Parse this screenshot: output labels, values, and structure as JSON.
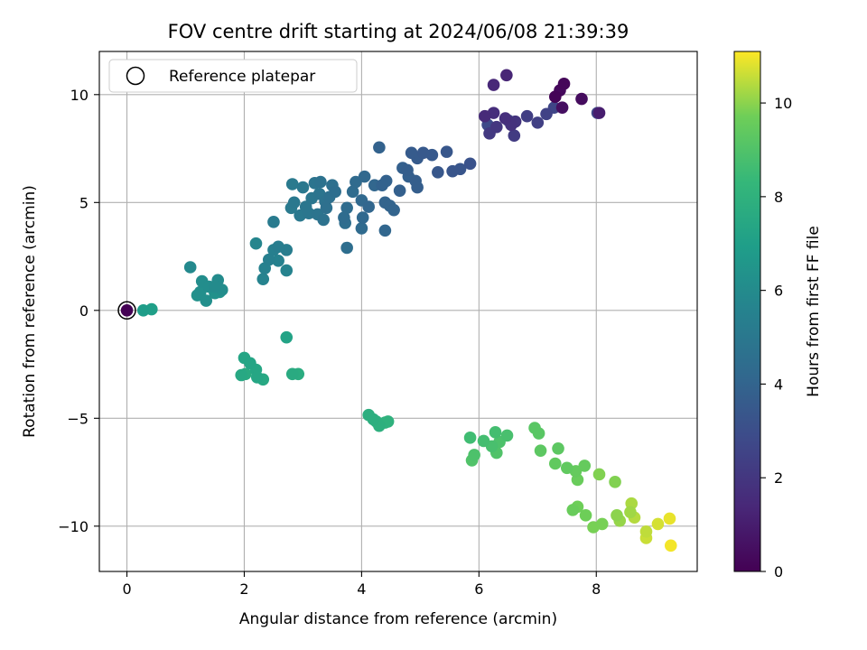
{
  "chart_data": {
    "type": "scatter",
    "title": "FOV centre drift starting at 2024/06/08 21:39:39",
    "xlabel": "Angular distance from reference (arcmin)",
    "ylabel": "Rotation from reference (arcmin)",
    "xlim": [
      -0.47,
      9.72
    ],
    "ylim": [
      -12.1,
      12.0
    ],
    "xticks": [
      0,
      2,
      4,
      6,
      8
    ],
    "xtick_labels": [
      "0",
      "2",
      "4",
      "6",
      "8"
    ],
    "yticks": [
      -10,
      -5,
      0,
      5,
      10
    ],
    "ytick_labels": [
      "−10",
      "−5",
      "0",
      "5",
      "10"
    ],
    "grid": true,
    "legend": {
      "placement": "upper-left",
      "entries": [
        "Reference platepar"
      ]
    },
    "colorbar": {
      "label": "Hours from first FF file",
      "colormap": "viridis",
      "range": [
        0,
        11.1
      ],
      "ticks": [
        0,
        2,
        4,
        6,
        8,
        10
      ],
      "tick_labels": [
        "0",
        "2",
        "4",
        "6",
        "8",
        "10"
      ]
    },
    "reference_point": {
      "x": 0,
      "y": 0
    },
    "columns": [
      "x",
      "y",
      "hours"
    ],
    "points": [
      [
        0,
        0,
        0
      ],
      [
        7.3,
        9.9,
        0.1
      ],
      [
        7.45,
        10.5,
        0.2
      ],
      [
        7.38,
        10.2,
        0.3
      ],
      [
        7.75,
        9.8,
        0.4
      ],
      [
        7.42,
        9.4,
        0.5
      ],
      [
        8.05,
        9.15,
        1.0
      ],
      [
        6.47,
        10.9,
        1.3
      ],
      [
        6.25,
        10.45,
        1.4
      ],
      [
        6.1,
        9.0,
        1.5
      ],
      [
        6.25,
        9.15,
        1.6
      ],
      [
        6.45,
        8.9,
        1.7
      ],
      [
        6.55,
        8.6,
        1.8
      ],
      [
        6.62,
        8.75,
        1.9
      ],
      [
        6.3,
        8.5,
        2.0
      ],
      [
        6.18,
        8.2,
        2.1
      ],
      [
        6.6,
        8.1,
        2.2
      ],
      [
        6.82,
        9.0,
        2.3
      ],
      [
        7.0,
        8.7,
        2.4
      ],
      [
        7.15,
        9.1,
        2.5
      ],
      [
        7.28,
        9.4,
        2.6
      ],
      [
        8.02,
        9.15,
        2.7
      ],
      [
        6.15,
        8.6,
        2.8
      ],
      [
        6.5,
        8.8,
        2.9
      ],
      [
        5.85,
        6.8,
        3.2
      ],
      [
        5.68,
        6.55,
        3.3
      ],
      [
        5.55,
        6.45,
        3.3
      ],
      [
        5.45,
        7.35,
        3.4
      ],
      [
        5.3,
        6.4,
        3.4
      ],
      [
        5.2,
        7.2,
        3.5
      ],
      [
        5.05,
        7.3,
        3.5
      ],
      [
        4.95,
        7.05,
        3.6
      ],
      [
        4.85,
        7.3,
        3.6
      ],
      [
        4.92,
        6.0,
        3.7
      ],
      [
        4.95,
        5.7,
        3.7
      ],
      [
        4.78,
        6.5,
        3.7
      ],
      [
        4.7,
        6.6,
        3.8
      ],
      [
        4.8,
        6.2,
        3.8
      ],
      [
        4.65,
        5.55,
        3.8
      ],
      [
        4.3,
        7.55,
        3.9
      ],
      [
        4.42,
        6.0,
        3.9
      ],
      [
        4.35,
        5.8,
        3.9
      ],
      [
        4.4,
        5.0,
        4.0
      ],
      [
        4.48,
        4.85,
        4.0
      ],
      [
        4.55,
        4.65,
        4.0
      ],
      [
        4.4,
        3.7,
        4.1
      ],
      [
        4.22,
        5.8,
        4.1
      ],
      [
        4.12,
        4.8,
        4.1
      ],
      [
        4.05,
        6.2,
        4.2
      ],
      [
        4.0,
        5.1,
        4.2
      ],
      [
        4.02,
        4.3,
        4.2
      ],
      [
        4.0,
        3.8,
        4.3
      ],
      [
        3.9,
        5.95,
        4.3
      ],
      [
        3.85,
        5.5,
        4.4
      ],
      [
        3.75,
        4.75,
        4.4
      ],
      [
        3.7,
        4.3,
        4.4
      ],
      [
        3.72,
        4.05,
        4.5
      ],
      [
        3.75,
        2.9,
        4.5
      ],
      [
        3.55,
        5.5,
        4.5
      ],
      [
        3.5,
        5.8,
        4.6
      ],
      [
        3.45,
        5.25,
        4.6
      ],
      [
        3.4,
        4.75,
        4.6
      ],
      [
        3.38,
        5.05,
        4.7
      ],
      [
        3.35,
        4.2,
        4.7
      ],
      [
        3.3,
        5.95,
        4.7
      ],
      [
        3.28,
        5.4,
        4.8
      ],
      [
        3.25,
        4.45,
        4.8
      ],
      [
        3.2,
        5.9,
        4.8
      ],
      [
        3.15,
        5.2,
        4.9
      ],
      [
        3.1,
        4.5,
        4.9
      ],
      [
        3.05,
        4.8,
        4.9
      ],
      [
        3.0,
        5.7,
        5.0
      ],
      [
        2.95,
        4.4,
        5.0
      ],
      [
        2.85,
        5.0,
        5.0
      ],
      [
        2.8,
        4.75,
        5.1
      ],
      [
        2.82,
        5.85,
        5.1
      ],
      [
        2.5,
        4.1,
        5.2
      ],
      [
        2.72,
        2.8,
        5.3
      ],
      [
        2.58,
        2.95,
        5.3
      ],
      [
        2.5,
        2.8,
        5.4
      ],
      [
        2.42,
        2.35,
        5.4
      ],
      [
        2.58,
        2.3,
        5.5
      ],
      [
        2.35,
        1.95,
        5.5
      ],
      [
        2.72,
        1.85,
        5.6
      ],
      [
        2.32,
        1.45,
        5.6
      ],
      [
        2.2,
        3.1,
        5.7
      ],
      [
        1.08,
        2.0,
        5.9
      ],
      [
        1.55,
        1.4,
        6.0
      ],
      [
        1.5,
        1.1,
        6.0
      ],
      [
        1.62,
        0.95,
        6.1
      ],
      [
        1.28,
        1.35,
        6.1
      ],
      [
        1.4,
        1.1,
        6.1
      ],
      [
        1.25,
        0.85,
        6.2
      ],
      [
        1.35,
        0.45,
        6.2
      ],
      [
        1.2,
        0.7,
        6.3
      ],
      [
        1.5,
        0.8,
        6.3
      ],
      [
        1.58,
        0.85,
        6.4
      ],
      [
        0.28,
        0.0,
        6.9
      ],
      [
        0.42,
        0.05,
        7.0
      ],
      [
        2.72,
        -1.25,
        7.2
      ],
      [
        2.0,
        -2.2,
        7.3
      ],
      [
        2.1,
        -2.45,
        7.3
      ],
      [
        2.2,
        -2.75,
        7.4
      ],
      [
        2.22,
        -3.1,
        7.4
      ],
      [
        2.32,
        -3.2,
        7.5
      ],
      [
        1.95,
        -3.0,
        7.5
      ],
      [
        2.02,
        -2.95,
        7.6
      ],
      [
        2.82,
        -2.95,
        7.6
      ],
      [
        2.92,
        -2.95,
        7.7
      ],
      [
        4.12,
        -4.85,
        7.8
      ],
      [
        4.2,
        -5.05,
        7.8
      ],
      [
        4.25,
        -5.15,
        7.9
      ],
      [
        4.3,
        -5.35,
        7.9
      ],
      [
        4.4,
        -5.2,
        8.0
      ],
      [
        4.45,
        -5.15,
        8.0
      ],
      [
        5.85,
        -5.9,
        8.6
      ],
      [
        6.08,
        -6.05,
        8.7
      ],
      [
        6.28,
        -5.65,
        8.7
      ],
      [
        6.22,
        -6.3,
        8.8
      ],
      [
        6.48,
        -5.8,
        8.8
      ],
      [
        6.35,
        -6.1,
        8.9
      ],
      [
        5.92,
        -6.7,
        8.9
      ],
      [
        5.88,
        -6.95,
        9.0
      ],
      [
        6.3,
        -6.6,
        9.0
      ],
      [
        6.95,
        -5.45,
        9.2
      ],
      [
        7.02,
        -5.7,
        9.2
      ],
      [
        7.05,
        -6.5,
        9.3
      ],
      [
        7.35,
        -6.4,
        9.3
      ],
      [
        7.3,
        -7.1,
        9.4
      ],
      [
        7.5,
        -7.3,
        9.4
      ],
      [
        7.65,
        -7.45,
        9.5
      ],
      [
        7.8,
        -7.2,
        9.5
      ],
      [
        7.68,
        -7.85,
        9.6
      ],
      [
        7.6,
        -9.25,
        9.6
      ],
      [
        7.68,
        -9.1,
        9.7
      ],
      [
        7.82,
        -9.5,
        9.7
      ],
      [
        7.95,
        -10.05,
        9.8
      ],
      [
        8.1,
        -9.9,
        9.8
      ],
      [
        8.32,
        -7.95,
        9.9
      ],
      [
        8.05,
        -7.6,
        9.9
      ],
      [
        8.35,
        -9.5,
        10.0
      ],
      [
        8.4,
        -9.75,
        10.1
      ],
      [
        8.58,
        -9.35,
        10.2
      ],
      [
        8.6,
        -8.95,
        10.3
      ],
      [
        8.65,
        -9.6,
        10.4
      ],
      [
        8.85,
        -10.25,
        10.5
      ],
      [
        8.85,
        -10.55,
        10.6
      ],
      [
        9.05,
        -9.9,
        10.7
      ],
      [
        9.25,
        -9.65,
        10.9
      ],
      [
        9.27,
        -10.9,
        11.0
      ]
    ]
  }
}
